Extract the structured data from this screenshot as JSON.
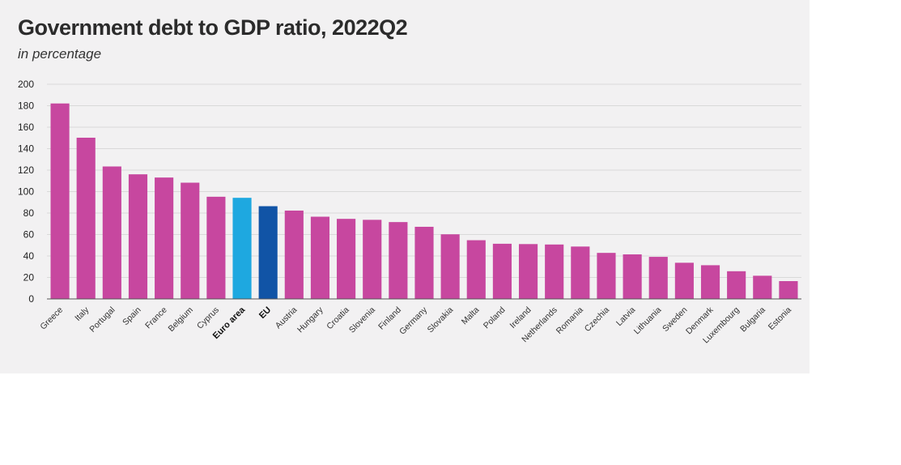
{
  "colors": {
    "country": "#c7479f",
    "euro_area": "#1ea8e0",
    "eu": "#1154a6",
    "grid": "#d9d9d9",
    "background": "#f2f1f2"
  },
  "chart_data": {
    "type": "bar",
    "title": "Government debt to GDP ratio, 2022Q2",
    "subtitle": "in percentage",
    "xlabel": "",
    "ylabel": "",
    "ylim": [
      0,
      200
    ],
    "yticks": [
      "0",
      "20",
      "40",
      "60",
      "80",
      "100",
      "120",
      "140",
      "160",
      "180",
      "200"
    ],
    "grid": true,
    "categories": [
      "Greece",
      "Italy",
      "Portugal",
      "Spain",
      "France",
      "Belgium",
      "Cyprus",
      "Euro area",
      "EU",
      "Austria",
      "Hungary",
      "Croatia",
      "Slovenia",
      "Finland",
      "Germany",
      "Slovakia",
      "Malta",
      "Poland",
      "Ireland",
      "Netherlands",
      "Romania",
      "Czechia",
      "Latvia",
      "Lithuania",
      "Sweden",
      "Denmark",
      "Luxembourg",
      "Bulgaria",
      "Estonia"
    ],
    "values": [
      182.1,
      150.2,
      123.4,
      116.1,
      113.1,
      108.3,
      95.2,
      94.2,
      86.4,
      82.3,
      76.6,
      74.6,
      73.7,
      71.6,
      67.2,
      60.2,
      54.7,
      51.4,
      51.1,
      50.7,
      48.8,
      42.9,
      41.5,
      39.2,
      33.7,
      31.4,
      25.8,
      21.6,
      16.6
    ],
    "highlight": {
      "Euro area": "euro_area",
      "EU": "eu"
    },
    "bold_categories": [
      "Euro area",
      "EU"
    ]
  }
}
